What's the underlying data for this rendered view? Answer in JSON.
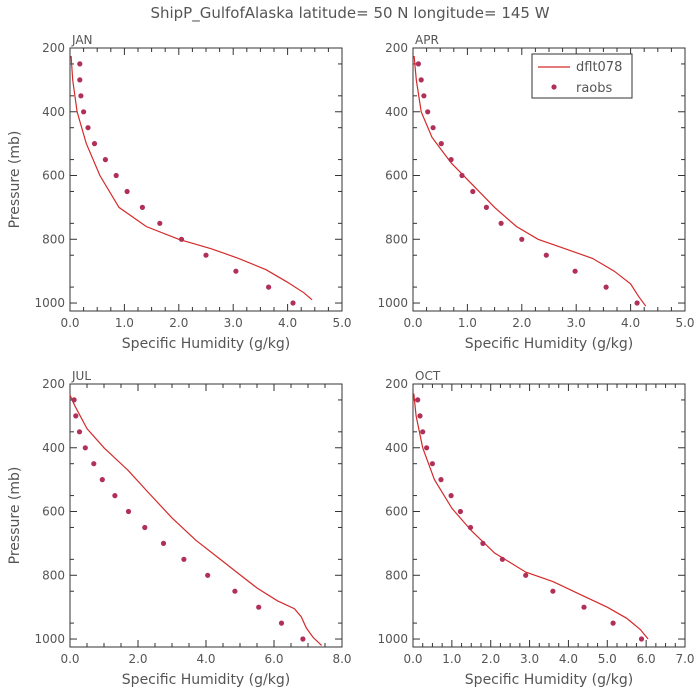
{
  "title": "ShipP_GulfofAlaska   latitude= 50 N longitude= 145 W",
  "colors": {
    "model": "#d42a2a",
    "obs": "#b03058",
    "axis": "#333333",
    "text": "#555555"
  },
  "legend": {
    "line_label": "dflt078",
    "marker_label": "raobs",
    "placement": "upper right of APR panel"
  },
  "chart_data": [
    {
      "type": "line",
      "panel": "JAN",
      "xlabel": "Specific Humidity (g/kg)",
      "ylabel": "Pressure (mb)",
      "xlim": [
        0,
        5
      ],
      "ylim": [
        200,
        1025
      ],
      "y_inverted": true,
      "xticks": [
        "0.0",
        "1.0",
        "2.0",
        "3.0",
        "4.0",
        "5.0"
      ],
      "xtick_values": [
        0,
        1,
        2,
        3,
        4,
        5
      ],
      "yticks": [
        "200",
        "400",
        "600",
        "800",
        "1000"
      ],
      "ytick_values": [
        200,
        400,
        600,
        800,
        1000
      ],
      "series": [
        {
          "name": "dflt078",
          "kind": "line",
          "points": [
            [
              0.02,
              225
            ],
            [
              0.05,
              300
            ],
            [
              0.13,
              400
            ],
            [
              0.3,
              500
            ],
            [
              0.55,
              600
            ],
            [
              0.9,
              700
            ],
            [
              1.4,
              760
            ],
            [
              2.0,
              800
            ],
            [
              2.6,
              830
            ],
            [
              3.1,
              860
            ],
            [
              3.6,
              895
            ],
            [
              4.0,
              935
            ],
            [
              4.3,
              968
            ],
            [
              4.45,
              990
            ]
          ]
        },
        {
          "name": "raobs",
          "kind": "scatter",
          "points": [
            [
              0.18,
              250
            ],
            [
              0.18,
              300
            ],
            [
              0.2,
              350
            ],
            [
              0.25,
              400
            ],
            [
              0.33,
              450
            ],
            [
              0.45,
              500
            ],
            [
              0.65,
              550
            ],
            [
              0.85,
              600
            ],
            [
              1.05,
              650
            ],
            [
              1.33,
              700
            ],
            [
              1.65,
              750
            ],
            [
              2.05,
              800
            ],
            [
              2.5,
              850
            ],
            [
              3.05,
              900
            ],
            [
              3.65,
              950
            ],
            [
              4.1,
              1000
            ]
          ]
        }
      ]
    },
    {
      "type": "line",
      "panel": "APR",
      "xlabel": "Specific Humidity (g/kg)",
      "ylabel": "",
      "xlim": [
        0,
        5
      ],
      "ylim": [
        200,
        1025
      ],
      "y_inverted": true,
      "xticks": [
        "0.0",
        "1.0",
        "2.0",
        "3.0",
        "4.0",
        "5.0"
      ],
      "xtick_values": [
        0,
        1,
        2,
        3,
        4,
        5
      ],
      "yticks": [
        "200",
        "400",
        "600",
        "800",
        "1000"
      ],
      "ytick_values": [
        200,
        400,
        600,
        800,
        1000
      ],
      "series": [
        {
          "name": "dflt078",
          "kind": "line",
          "points": [
            [
              0.02,
              225
            ],
            [
              0.06,
              300
            ],
            [
              0.15,
              400
            ],
            [
              0.35,
              480
            ],
            [
              0.7,
              560
            ],
            [
              1.1,
              630
            ],
            [
              1.5,
              700
            ],
            [
              1.9,
              760
            ],
            [
              2.3,
              800
            ],
            [
              2.8,
              830
            ],
            [
              3.3,
              860
            ],
            [
              3.7,
              900
            ],
            [
              4.0,
              940
            ],
            [
              4.15,
              980
            ],
            [
              4.28,
              1010
            ]
          ]
        },
        {
          "name": "raobs",
          "kind": "scatter",
          "points": [
            [
              0.1,
              250
            ],
            [
              0.15,
              300
            ],
            [
              0.2,
              350
            ],
            [
              0.27,
              400
            ],
            [
              0.37,
              450
            ],
            [
              0.52,
              500
            ],
            [
              0.7,
              550
            ],
            [
              0.9,
              600
            ],
            [
              1.1,
              650
            ],
            [
              1.35,
              700
            ],
            [
              1.62,
              750
            ],
            [
              2.0,
              800
            ],
            [
              2.45,
              850
            ],
            [
              2.98,
              900
            ],
            [
              3.55,
              950
            ],
            [
              4.12,
              1000
            ]
          ]
        }
      ]
    },
    {
      "type": "line",
      "panel": "JUL",
      "xlabel": "Specific Humidity (g/kg)",
      "ylabel": "Pressure (mb)",
      "xlim": [
        0,
        8
      ],
      "ylim": [
        200,
        1025
      ],
      "y_inverted": true,
      "xticks": [
        "0.0",
        "2.0",
        "4.0",
        "6.0",
        "8.0"
      ],
      "xtick_values": [
        0,
        2,
        4,
        6,
        8
      ],
      "yticks": [
        "200",
        "400",
        "600",
        "800",
        "1000"
      ],
      "ytick_values": [
        200,
        400,
        600,
        800,
        1000
      ],
      "series": [
        {
          "name": "dflt078",
          "kind": "line",
          "points": [
            [
              0.0,
              235
            ],
            [
              0.15,
              270
            ],
            [
              0.5,
              340
            ],
            [
              1.0,
              400
            ],
            [
              1.7,
              470
            ],
            [
              2.3,
              540
            ],
            [
              3.0,
              620
            ],
            [
              3.7,
              690
            ],
            [
              4.3,
              740
            ],
            [
              4.9,
              790
            ],
            [
              5.5,
              840
            ],
            [
              6.1,
              880
            ],
            [
              6.6,
              905
            ],
            [
              6.8,
              930
            ],
            [
              6.95,
              965
            ],
            [
              7.15,
              995
            ],
            [
              7.4,
              1020
            ]
          ]
        },
        {
          "name": "raobs",
          "kind": "scatter",
          "points": [
            [
              0.12,
              250
            ],
            [
              0.17,
              300
            ],
            [
              0.28,
              350
            ],
            [
              0.45,
              400
            ],
            [
              0.7,
              450
            ],
            [
              0.95,
              500
            ],
            [
              1.32,
              550
            ],
            [
              1.72,
              600
            ],
            [
              2.2,
              650
            ],
            [
              2.75,
              700
            ],
            [
              3.35,
              750
            ],
            [
              4.05,
              800
            ],
            [
              4.85,
              850
            ],
            [
              5.55,
              900
            ],
            [
              6.22,
              950
            ],
            [
              6.85,
              1000
            ]
          ]
        }
      ]
    },
    {
      "type": "line",
      "panel": "OCT",
      "xlabel": "Specific Humidity (g/kg)",
      "ylabel": "",
      "xlim": [
        0,
        7
      ],
      "ylim": [
        200,
        1025
      ],
      "y_inverted": true,
      "xticks": [
        "0.0",
        "1.0",
        "2.0",
        "3.0",
        "4.0",
        "5.0",
        "6.0",
        "7.0"
      ],
      "xtick_values": [
        0,
        1,
        2,
        3,
        4,
        5,
        6,
        7
      ],
      "yticks": [
        "200",
        "400",
        "600",
        "800",
        "1000"
      ],
      "ytick_values": [
        200,
        400,
        600,
        800,
        1000
      ],
      "series": [
        {
          "name": "dflt078",
          "kind": "line",
          "points": [
            [
              0.02,
              230
            ],
            [
              0.08,
              300
            ],
            [
              0.25,
              400
            ],
            [
              0.55,
              500
            ],
            [
              1.0,
              590
            ],
            [
              1.5,
              660
            ],
            [
              2.1,
              730
            ],
            [
              2.9,
              790
            ],
            [
              3.6,
              820
            ],
            [
              4.3,
              860
            ],
            [
              5.0,
              900
            ],
            [
              5.5,
              935
            ],
            [
              5.85,
              970
            ],
            [
              6.05,
              1000
            ]
          ]
        },
        {
          "name": "raobs",
          "kind": "scatter",
          "points": [
            [
              0.12,
              250
            ],
            [
              0.18,
              300
            ],
            [
              0.25,
              350
            ],
            [
              0.35,
              400
            ],
            [
              0.5,
              450
            ],
            [
              0.72,
              500
            ],
            [
              0.98,
              550
            ],
            [
              1.22,
              600
            ],
            [
              1.48,
              650
            ],
            [
              1.8,
              700
            ],
            [
              2.3,
              750
            ],
            [
              2.9,
              800
            ],
            [
              3.6,
              850
            ],
            [
              4.4,
              900
            ],
            [
              5.15,
              950
            ],
            [
              5.88,
              1000
            ]
          ]
        }
      ]
    }
  ]
}
